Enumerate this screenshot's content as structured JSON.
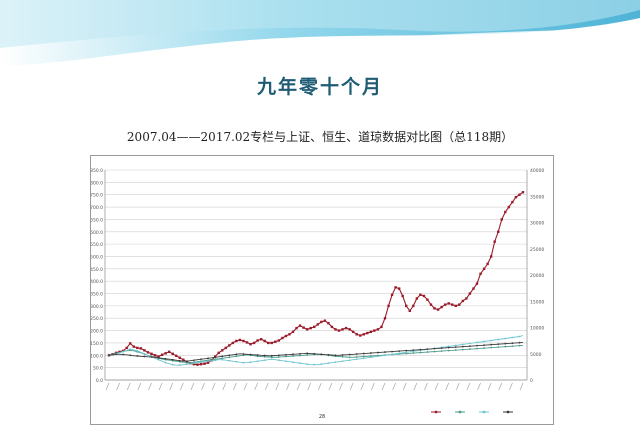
{
  "slide": {
    "title": "九年零十个月",
    "subtitle": "2007.04——2017.02专栏与上证、恒生、道琼数据对比图（总118期）"
  },
  "colors": {
    "accent_wave": "#4fb8d8",
    "title_color": "#1e5b74",
    "series": [
      "#9b1b2b",
      "#4a9a8a",
      "#6fc4cf",
      "#3a3a3a"
    ]
  },
  "chart_data": {
    "type": "line",
    "footer_label": "28",
    "y_left": {
      "min": 0,
      "max": 850,
      "step": 50,
      "ticks": [
        "0.0",
        "50.0",
        "100.0",
        "150.0",
        "200.0",
        "250.0",
        "300.0",
        "350.0",
        "400.0",
        "450.0",
        "500.0",
        "550.0",
        "600.0",
        "650.0",
        "700.0",
        "750.0",
        "800.0",
        "850.0"
      ]
    },
    "y_right": {
      "min": 0,
      "max": 40000,
      "step": 5000,
      "ticks": [
        "0",
        "5000",
        "10000",
        "15000",
        "20000",
        "25000",
        "30000",
        "35000",
        "40000"
      ]
    },
    "grid": true,
    "legend_position": "bottom-right",
    "series": [
      {
        "key": "column",
        "axis": "left",
        "values": [
          100,
          104,
          110,
          114,
          118,
          130,
          148,
          135,
          130,
          128,
          120,
          112,
          106,
          100,
          95,
          102,
          108,
          114,
          106,
          98,
          90,
          82,
          74,
          68,
          64,
          62,
          64,
          66,
          70,
          80,
          95,
          110,
          120,
          130,
          140,
          150,
          158,
          162,
          158,
          152,
          145,
          150,
          160,
          165,
          158,
          150,
          150,
          155,
          160,
          170,
          178,
          185,
          195,
          210,
          220,
          212,
          205,
          210,
          215,
          225,
          235,
          240,
          230,
          215,
          205,
          200,
          205,
          210,
          205,
          195,
          185,
          180,
          185,
          190,
          195,
          200,
          205,
          215,
          250,
          300,
          345,
          375,
          370,
          340,
          300,
          280,
          300,
          330,
          345,
          340,
          325,
          305,
          290,
          285,
          295,
          305,
          310,
          305,
          300,
          305,
          320,
          330,
          350,
          370,
          390,
          430,
          450,
          470,
          500,
          560,
          600,
          650,
          680,
          700,
          720,
          740,
          750,
          760
        ]
      },
      {
        "key": "shanghai",
        "axis": "left",
        "values": [
          100,
          104,
          108,
          112,
          116,
          118,
          120,
          118,
          114,
          110,
          105,
          100,
          96,
          92,
          88,
          85,
          82,
          80,
          78,
          76,
          74,
          72,
          70,
          70,
          72,
          74,
          76,
          78,
          80,
          82,
          84,
          86,
          88,
          90,
          92,
          94,
          96,
          98,
          100,
          102,
          100,
          98,
          96,
          95,
          94,
          93,
          92,
          92,
          93,
          94,
          95,
          96,
          97,
          98,
          99,
          100,
          101,
          102,
          103,
          104,
          103,
          102,
          100,
          98,
          96,
          95,
          94,
          93,
          92,
          92,
          93,
          94,
          95,
          96,
          97,
          98,
          99,
          100,
          101,
          102,
          103,
          104,
          105,
          106,
          107,
          108,
          109,
          110,
          111,
          112,
          113,
          114,
          115,
          116,
          117,
          118,
          119,
          120,
          121,
          122,
          123,
          124,
          125,
          126,
          127,
          128,
          129,
          130,
          131,
          132,
          133,
          134,
          135,
          136,
          137,
          138,
          139,
          140
        ]
      },
      {
        "key": "hangseng",
        "axis": "left",
        "values": [
          100,
          102,
          106,
          110,
          115,
          120,
          125,
          122,
          118,
          112,
          106,
          100,
          94,
          88,
          82,
          76,
          70,
          66,
          62,
          60,
          60,
          62,
          64,
          66,
          68,
          70,
          72,
          74,
          76,
          78,
          80,
          82,
          82,
          80,
          78,
          76,
          74,
          72,
          70,
          70,
          72,
          74,
          76,
          78,
          80,
          82,
          84,
          82,
          80,
          78,
          76,
          74,
          72,
          70,
          68,
          66,
          64,
          62,
          62,
          62,
          64,
          66,
          68,
          70,
          72,
          74,
          76,
          78,
          80,
          82,
          84,
          86,
          88,
          90,
          92,
          94,
          96,
          98,
          100,
          102,
          104,
          106,
          108,
          110,
          112,
          114,
          116,
          118,
          120,
          122,
          124,
          126,
          128,
          130,
          132,
          134,
          136,
          138,
          140,
          142,
          144,
          146,
          148,
          150,
          152,
          154,
          156,
          158,
          160,
          162,
          164,
          166,
          168,
          170,
          172,
          174,
          176,
          180
        ]
      },
      {
        "key": "dow",
        "axis": "left",
        "values": [
          100,
          102,
          104,
          104,
          103,
          102,
          100,
          98,
          97,
          96,
          95,
          94,
          93,
          92,
          90,
          88,
          86,
          84,
          82,
          80,
          78,
          76,
          76,
          78,
          80,
          82,
          84,
          86,
          88,
          90,
          92,
          94,
          96,
          98,
          100,
          102,
          104,
          106,
          105,
          104,
          103,
          102,
          101,
          100,
          99,
          98,
          98,
          99,
          100,
          101,
          102,
          103,
          104,
          105,
          106,
          107,
          108,
          107,
          106,
          105,
          104,
          103,
          102,
          101,
          100,
          100,
          101,
          102,
          103,
          104,
          105,
          106,
          107,
          108,
          109,
          110,
          111,
          112,
          113,
          114,
          115,
          116,
          117,
          118,
          119,
          120,
          121,
          122,
          123,
          124,
          125,
          126,
          127,
          128,
          129,
          130,
          131,
          132,
          133,
          134,
          135,
          136,
          137,
          138,
          139,
          140,
          141,
          142,
          143,
          144,
          145,
          146,
          147,
          148,
          149,
          150,
          151,
          152
        ]
      }
    ]
  }
}
